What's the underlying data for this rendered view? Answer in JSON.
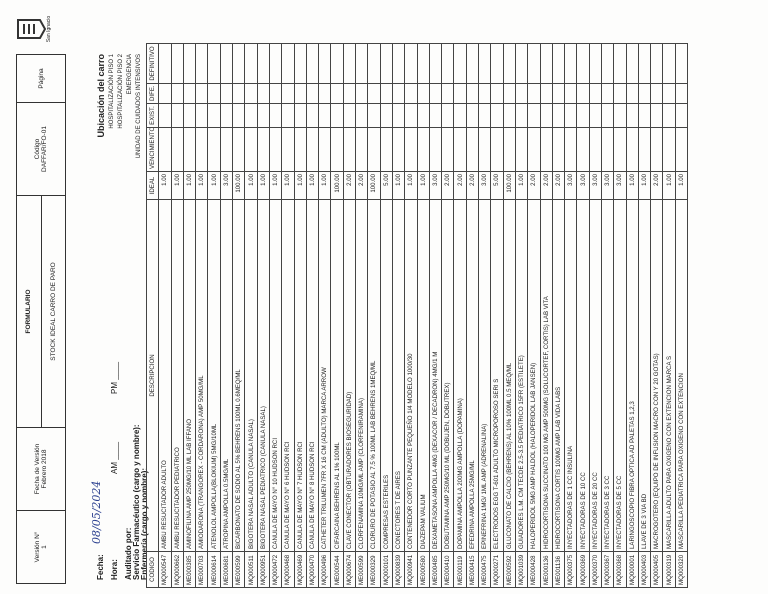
{
  "header": {
    "version_label": "Versión N°",
    "version": "1",
    "version_date_label": "Fecha de Versión",
    "version_date": "Febrero 2018",
    "form": "FORMULARIO",
    "title": "STOCK IDEAL CARRO DE PARO",
    "code_label": "Código",
    "code": "DAFFAR/FO-01",
    "page_label": "Página",
    "logo_text": "San Ignacio"
  },
  "fields": {
    "date_label": "Fecha:",
    "date_value": "08/05/2024",
    "time_label": "Hora:",
    "am": "AM ____",
    "pm": "PM ____",
    "audited_by": "Auditado por:",
    "pharmacy": "Servicio Farmacéutico (cargo y nombre):",
    "nursing": "Enfermería (cargo y nombre):"
  },
  "location": {
    "title": "Ubicación del carro",
    "options": [
      "HOSPITALIZACIÓN PISO 1",
      "HOSPITALIZACIÓN PISO 2",
      "EMERGENCIA",
      "UNIDAD DE CUIDADOS INTENSIVOS"
    ]
  },
  "table": {
    "columns": [
      "CODIGO",
      "DESCRIPCION",
      "IDEAL",
      "VENCIMIENTO",
      "EXIST.",
      "DIFE.",
      "DEFINITIVO"
    ],
    "rows": [
      [
        "MQ000547",
        "AMBU RESUCITADOR ADULTO",
        "1.00"
      ],
      [
        "MQ000662",
        "AMBU RESUCITADOR PEDIATRICO",
        "1.00"
      ],
      [
        "ME000385",
        "AMINOFILINA AMP 250MG/10 ML LAB IFFANO",
        "1.00"
      ],
      [
        "ME000703",
        "AMIODARONA (TRANGOREX - CORDARONA) AMP 50MG/ML",
        "1.00"
      ],
      [
        "ME000614",
        "ATENOLOL AMPOLLA(BLOKIUM) 5MG/10ML",
        "1.00"
      ],
      [
        "ME000681",
        "ATROPINA AMPOLLA 0.5MG/ML",
        "3.00"
      ],
      [
        "ME000599",
        "BICARBONATO DE SODIO AL 5% BEHRENS 100ML 0.6MEQ/ML",
        "100.00"
      ],
      [
        "MQ000511",
        "BIGOTERA NASAL ADULTO (CANULA NASAL)",
        "1.00"
      ],
      [
        "MQ000951",
        "BIGOTERA NASAL PEDIATRICO (CANULA NASAL)",
        "1.00"
      ],
      [
        "MQ000472",
        "CANULA DE MAYO N° 10 HUDSON RCI",
        "1.00"
      ],
      [
        "MQ000468",
        "CANULA DE MAYO N° 6 HUDSON RCI",
        "1.00"
      ],
      [
        "MQ000469",
        "CANULA DE MAYO N° 7 HUDSON RCI",
        "1.00"
      ],
      [
        "MQ000470",
        "CANULA DE MAYO N° 8 HUDSON RCI",
        "1.00"
      ],
      [
        "MQ000496",
        "CATHETER TRILUMEN 7FR X 16 CM (ADULTO) MARCA ARROW",
        "1.00"
      ],
      [
        "ME000544",
        "CIFARCAINA BEHRENS AL 1% 100ML",
        "100.00"
      ],
      [
        "MQ000674",
        "CLAVE CONECTOR (OBTURADORES BIOSEGURIDAD)",
        "2.00"
      ],
      [
        "ME000599",
        "CLORFENAMINA 10MG/ML AMP (CLORFENIRAMINA)",
        "2.00"
      ],
      [
        "ME000329",
        "CLORURO DE POTASIO AL 7.5 % 100ML LAB BEHRENS 1MEQ/ML",
        "100.00"
      ],
      [
        "MQ000101",
        "COMPRESAS ESTERILES",
        "5.00"
      ],
      [
        "MQ000839",
        "CONECTORES T DE AIRES",
        "1.00"
      ],
      [
        "MQ000941",
        "CONTENEDOR CORTO PUNZANTE PEQUEÑO 1/4 MODELO 1000/30",
        "1.00"
      ],
      [
        "ME000580",
        "DIAZEPAM VALIUM",
        "1.00"
      ],
      [
        "ME000485",
        "DEXAMETASONA AMPOLLA 4MG (DEXACOR / DECADRON) 4MG/1 M",
        "3.00"
      ],
      [
        "ME000410",
        "DOBUTAMINA AMP 250MG/10 ML (DOBUJEN, DOBUTREX)",
        "2.00"
      ],
      [
        "ME000119",
        "DOPAMINA AMPOLLA 200MG AMPOLLA (DOPAMINA)",
        "2.00"
      ],
      [
        "ME000415",
        "EFEDRINA AMPOLLA 25MG/ML",
        "2.00"
      ],
      [
        "ME000475",
        "EPINEFRINA 1MG/ 1ML AMP (ADRENALINA)",
        "3.00"
      ],
      [
        "MQ000271",
        "ELECTRODOS EGG T-601 ADULTO MICROPOROSO SERI S",
        "5.00"
      ],
      [
        "ME000592",
        "GLUCONATO DE CALCIO (BEHRENS) AL 10% 100ML 0.5 MEQ/ML",
        "100.00"
      ],
      [
        "MQ001039",
        "GUIADORES L.M. CM TECDE 2.5-3.5 PEDIATRICO 15FR (ESTILETE)",
        "1.00"
      ],
      [
        "ME000428",
        "HALOPERIDOL 5MG AMP HALDOL (HALOPERIDOL LAB JANSEN)",
        "2.00"
      ],
      [
        "ME000136",
        "HIDROCORTISONA SUCCINATO 100 MG AMP 500MG (SOLUCORTEF, CORTIS) LAB VITA",
        "2.00"
      ],
      [
        "ME001136",
        "HIDROCORTISONA CORTIS 100MG AMP LAB VIDA LABS",
        "2.00"
      ],
      [
        "MQ000375",
        "INYECTADORAS DE 1 CC INSULINA",
        "3.00"
      ],
      [
        "MQ000369",
        "INYECTADORAS DE 10 CC",
        "3.00"
      ],
      [
        "MQ000370",
        "INYECTADORAS DE 20 CC",
        "3.00"
      ],
      [
        "MQ000367",
        "INYECTADORAS DE 3 CC",
        "3.00"
      ],
      [
        "MQ000368",
        "INYECTADORAS DE 5 CC",
        "3.00"
      ],
      [
        "MQ000001",
        "LARINGOSCOPIO FIBRA OPTICA AD PALETAS 1,2,3",
        "1.00"
      ],
      [
        "MQ000403",
        "LLAVE DE 3 VIA BD",
        "1.00"
      ],
      [
        "MQ000405",
        "MACROGOTERO (EQUIPO DE INFUSION MACRO CON Y 20 GOTAS)",
        "2.00"
      ],
      [
        "MQ000319",
        "MASCARILLA ADULTO PARA OXIGENO CON EXTENCION MARCA S",
        "1.00"
      ],
      [
        "MQ000320",
        "MASCARILLA PEDIATRICA PARA OXIGENO CON EXTENCION",
        "1.00"
      ]
    ]
  }
}
